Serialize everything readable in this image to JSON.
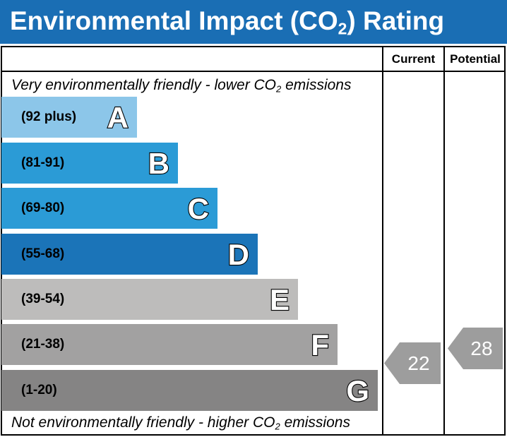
{
  "header": {
    "title_main": "Environmental Impact (CO",
    "title_sub": "2",
    "title_end": ") Rating"
  },
  "columns": {
    "current": "Current",
    "potential": "Potential"
  },
  "top_note": {
    "pre": "Very environmentally friendly - lower CO",
    "sub": "2",
    "post": " emissions"
  },
  "bottom_note": {
    "pre": "Not environmentally friendly - higher CO",
    "sub": "2",
    "post": " emissions"
  },
  "colors": {
    "header": "#1a6eb4",
    "A": "#8cc6e9",
    "B": "#2b9bd6",
    "C": "#2b9bd6",
    "D": "#1b74b8",
    "E": "#bdbcbb",
    "F": "#a2a1a1",
    "G": "#858484",
    "indicator": "#9d9d9d"
  },
  "chart_data": {
    "type": "bar",
    "title": "Environmental Impact (CO2) Rating",
    "bands": [
      {
        "letter": "A",
        "range": "(92 plus)",
        "min": 92,
        "max": null
      },
      {
        "letter": "B",
        "range": "(81-91)",
        "min": 81,
        "max": 91
      },
      {
        "letter": "C",
        "range": "(69-80)",
        "min": 69,
        "max": 80
      },
      {
        "letter": "D",
        "range": "(55-68)",
        "min": 55,
        "max": 68
      },
      {
        "letter": "E",
        "range": "(39-54)",
        "min": 39,
        "max": 54
      },
      {
        "letter": "F",
        "range": "(21-38)",
        "min": 21,
        "max": 38
      },
      {
        "letter": "G",
        "range": "(1-20)",
        "min": 1,
        "max": 20
      }
    ],
    "current": {
      "value": 22,
      "label": "22",
      "band": "F"
    },
    "potential": {
      "value": 28,
      "label": "28",
      "band": "F"
    }
  }
}
